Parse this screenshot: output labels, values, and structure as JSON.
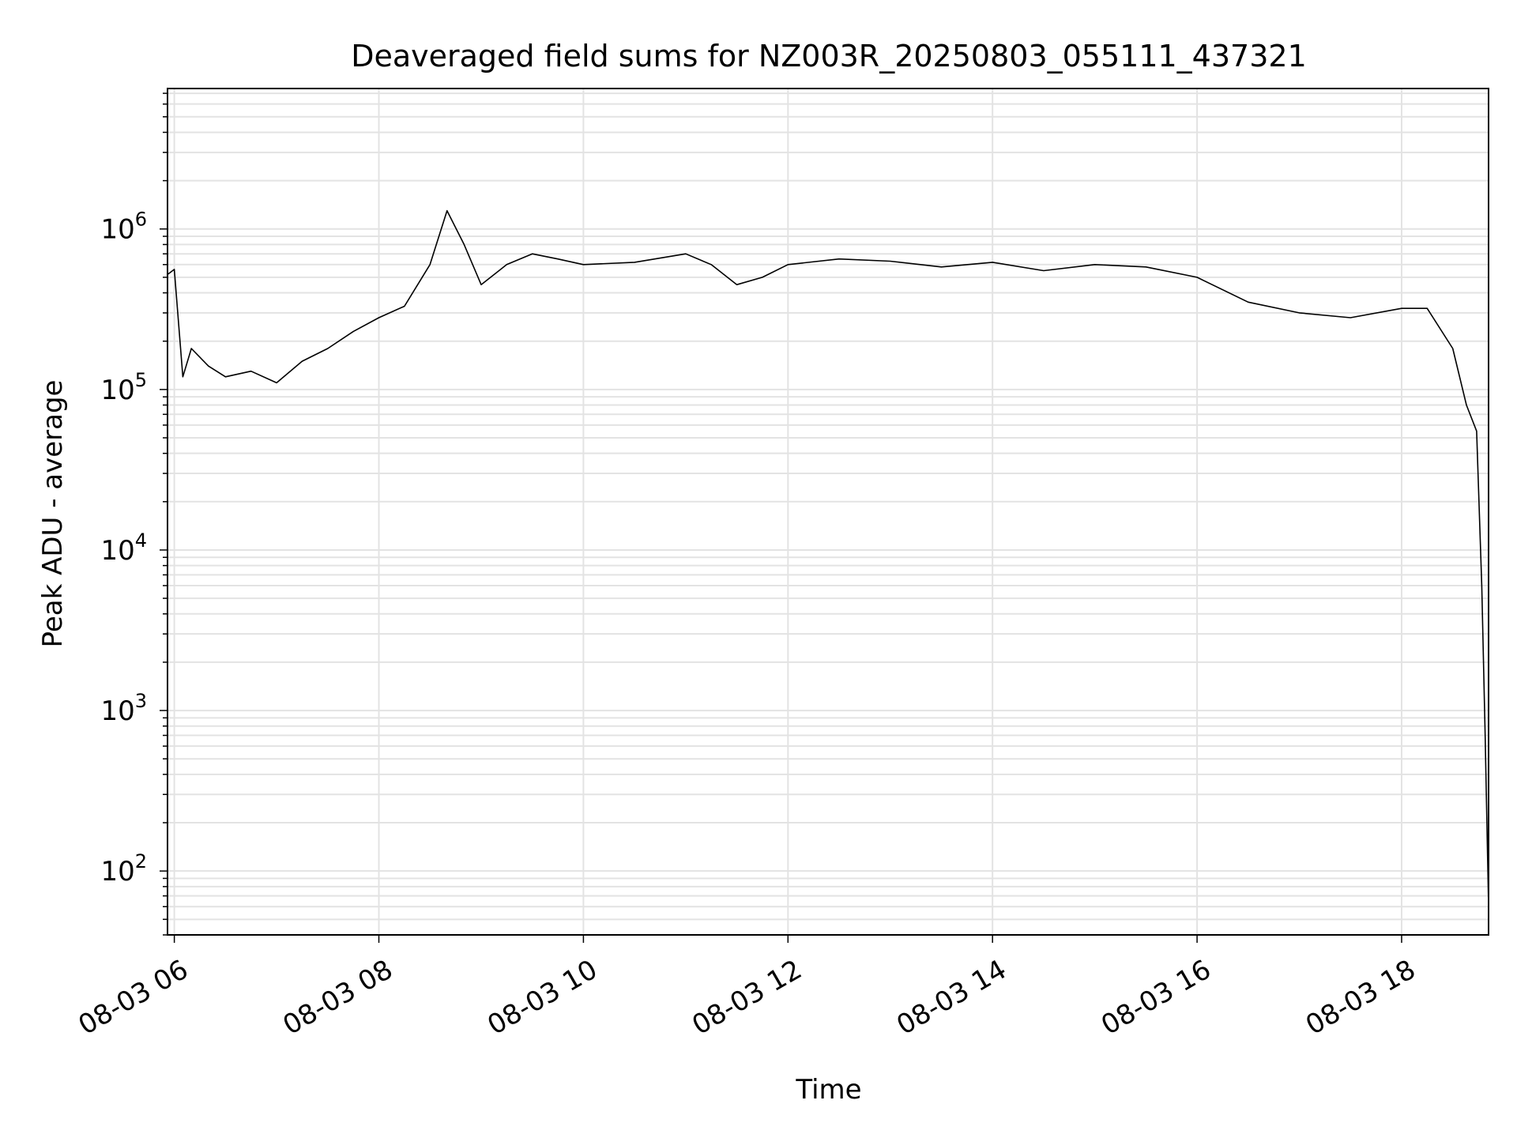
{
  "chart_data": {
    "type": "line",
    "title": "Deaveraged field sums for NZ003R_20250803_055111_437321",
    "xlabel": "Time",
    "ylabel": "Peak ADU - average",
    "yscale": "log",
    "ylim": [
      40,
      7500000
    ],
    "xlim": [
      "2025-08-03 05:56",
      "2025-08-03 18:51"
    ],
    "grid": true,
    "x_ticks": [
      {
        "x": "2025-08-03 06:00",
        "label": "08-03 06"
      },
      {
        "x": "2025-08-03 08:00",
        "label": "08-03 08"
      },
      {
        "x": "2025-08-03 10:00",
        "label": "08-03 10"
      },
      {
        "x": "2025-08-03 12:00",
        "label": "08-03 12"
      },
      {
        "x": "2025-08-03 14:00",
        "label": "08-03 14"
      },
      {
        "x": "2025-08-03 16:00",
        "label": "08-03 16"
      },
      {
        "x": "2025-08-03 18:00",
        "label": "08-03 18"
      }
    ],
    "y_ticks": [
      {
        "value": 100,
        "base": "10",
        "exp": "2"
      },
      {
        "value": 1000,
        "base": "10",
        "exp": "3"
      },
      {
        "value": 10000,
        "base": "10",
        "exp": "4"
      },
      {
        "value": 100000,
        "base": "10",
        "exp": "5"
      },
      {
        "value": 1000000,
        "base": "10",
        "exp": "6"
      }
    ],
    "series": [
      {
        "color": "#000000",
        "points": [
          [
            "2025-08-03 05:56",
            520000
          ],
          [
            "2025-08-03 06:00",
            560000
          ],
          [
            "2025-08-03 06:05",
            120000
          ],
          [
            "2025-08-03 06:10",
            180000
          ],
          [
            "2025-08-03 06:20",
            140000
          ],
          [
            "2025-08-03 06:30",
            120000
          ],
          [
            "2025-08-03 06:45",
            130000
          ],
          [
            "2025-08-03 07:00",
            110000
          ],
          [
            "2025-08-03 07:15",
            150000
          ],
          [
            "2025-08-03 07:30",
            180000
          ],
          [
            "2025-08-03 07:45",
            230000
          ],
          [
            "2025-08-03 08:00",
            280000
          ],
          [
            "2025-08-03 08:15",
            330000
          ],
          [
            "2025-08-03 08:30",
            600000
          ],
          [
            "2025-08-03 08:40",
            1300000
          ],
          [
            "2025-08-03 08:50",
            800000
          ],
          [
            "2025-08-03 09:00",
            450000
          ],
          [
            "2025-08-03 09:15",
            600000
          ],
          [
            "2025-08-03 09:30",
            700000
          ],
          [
            "2025-08-03 09:45",
            650000
          ],
          [
            "2025-08-03 10:00",
            600000
          ],
          [
            "2025-08-03 10:30",
            620000
          ],
          [
            "2025-08-03 11:00",
            700000
          ],
          [
            "2025-08-03 11:15",
            600000
          ],
          [
            "2025-08-03 11:30",
            450000
          ],
          [
            "2025-08-03 11:45",
            500000
          ],
          [
            "2025-08-03 12:00",
            600000
          ],
          [
            "2025-08-03 12:30",
            650000
          ],
          [
            "2025-08-03 13:00",
            630000
          ],
          [
            "2025-08-03 13:30",
            580000
          ],
          [
            "2025-08-03 14:00",
            620000
          ],
          [
            "2025-08-03 14:30",
            550000
          ],
          [
            "2025-08-03 15:00",
            600000
          ],
          [
            "2025-08-03 15:30",
            580000
          ],
          [
            "2025-08-03 16:00",
            500000
          ],
          [
            "2025-08-03 16:30",
            350000
          ],
          [
            "2025-08-03 17:00",
            300000
          ],
          [
            "2025-08-03 17:30",
            280000
          ],
          [
            "2025-08-03 18:00",
            320000
          ],
          [
            "2025-08-03 18:15",
            320000
          ],
          [
            "2025-08-03 18:30",
            180000
          ],
          [
            "2025-08-03 18:38",
            80000
          ],
          [
            "2025-08-03 18:44",
            55000
          ],
          [
            "2025-08-03 18:47",
            6000
          ],
          [
            "2025-08-03 18:49",
            700
          ],
          [
            "2025-08-03 18:51",
            60
          ]
        ]
      }
    ]
  }
}
